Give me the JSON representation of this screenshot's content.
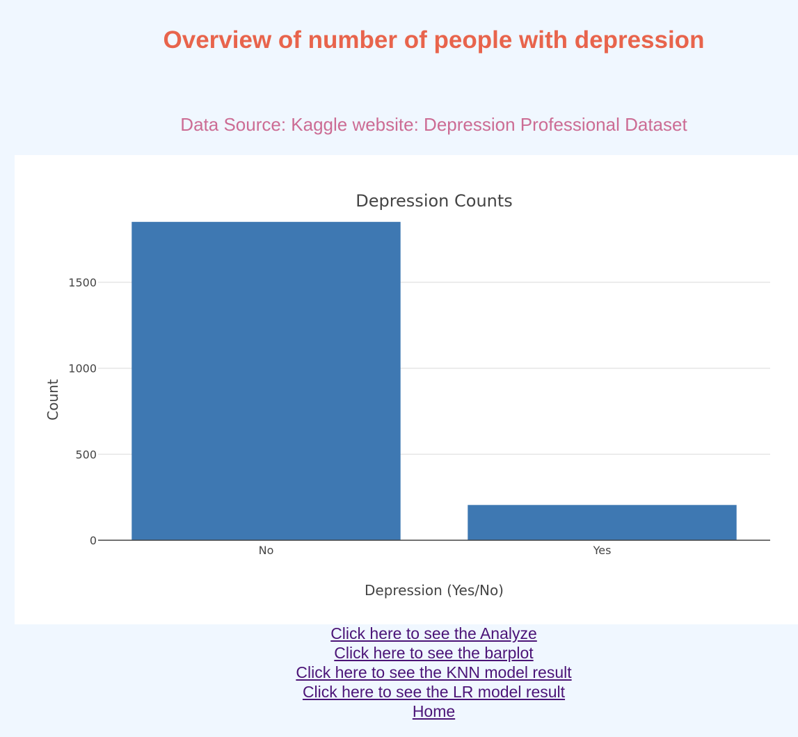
{
  "header": {
    "title": "Overview of number of people with depression",
    "subtitle": "Data Source: Kaggle website: Depression Professional Dataset"
  },
  "colors": {
    "bar": "#3e78b2",
    "title": "#e8644c",
    "subtitle": "#cc6c94",
    "link": "#4b1477"
  },
  "chart_data": {
    "type": "bar",
    "title": "Depression Counts",
    "xlabel": "Depression (Yes/No)",
    "ylabel": "Count",
    "categories": [
      "No",
      "Yes"
    ],
    "values": [
      1851,
      205
    ],
    "ylim": [
      0,
      1900
    ],
    "yticks": [
      0,
      500,
      1000,
      1500
    ],
    "grid": true,
    "legend": "none"
  },
  "links": [
    {
      "label": "Click here to see the Analyze"
    },
    {
      "label": "Click here to see the barplot"
    },
    {
      "label": "Click here to see the KNN model result"
    },
    {
      "label": "Click here to see the LR model result"
    },
    {
      "label": "Home"
    }
  ]
}
